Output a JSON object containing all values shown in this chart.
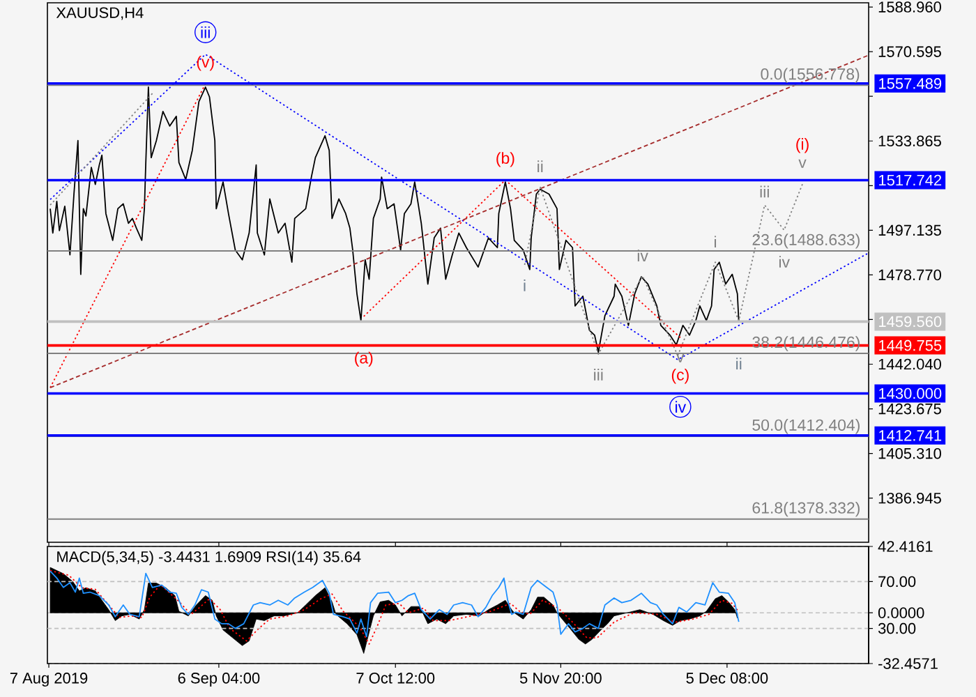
{
  "chart_data": [
    {
      "type": "line",
      "title": "XAUUSD,H4",
      "xlim": [
        "2019-08-06T18:00",
        "2019-12-30T11:00"
      ],
      "ylim": [
        1368.8,
        1590.7
      ],
      "tick_labels": "y",
      "xticks": [
        {
          "value": "2019-08-07T00:00",
          "label": null
        },
        {
          "value": "2019-09-06T04:00",
          "label": null
        },
        {
          "value": "2019-10-07T12:00",
          "label": null
        },
        {
          "value": "2019-11-05T20:00",
          "label": null
        },
        {
          "value": "2019-12-05T08:00",
          "label": null
        }
      ],
      "yticks": [
        {
          "value": 1588.96,
          "label": "1588.960"
        },
        {
          "value": 1570.595,
          "label": "1570.595"
        },
        {
          "value": 1552.23,
          "label": null
        },
        {
          "value": 1533.865,
          "label": "1533.865"
        },
        {
          "value": 1515.5,
          "label": null
        },
        {
          "value": 1497.135,
          "label": "1497.135"
        },
        {
          "value": 1478.77,
          "label": "1478.770"
        },
        {
          "value": 1460.405,
          "label": null
        },
        {
          "value": 1442.04,
          "label": "1442.040"
        },
        {
          "value": 1423.675,
          "label": "1423.675"
        },
        {
          "value": 1405.31,
          "label": "1405.310"
        },
        {
          "value": 1386.945,
          "label": "1386.945"
        }
      ],
      "series": [
        {
          "color": "#000000",
          "x": [
            "2019-08-07T06:00",
            "2019-08-07T17:00",
            "2019-08-08T10:00",
            "2019-08-08T21:00",
            "2019-08-09T20:00",
            "2019-08-10T18:00",
            "2019-08-11T11:00",
            "2019-08-12T04:00",
            "2019-08-12T16:00",
            "2019-08-13T03:00",
            "2019-08-13T14:00",
            "2019-08-14T13:00",
            "2019-08-15T06:00",
            "2019-08-15T23:00",
            "2019-08-16T10:00",
            "2019-08-17T03:00",
            "2019-08-18T08:00",
            "2019-08-19T06:00",
            "2019-08-20T05:00",
            "2019-08-21T03:00",
            "2019-08-21T20:00",
            "2019-08-22T13:00",
            "2019-08-23T12:00",
            "2019-08-23T23:00",
            "2019-08-24T05:00",
            "2019-08-24T16:00",
            "2019-08-25T04:00",
            "2019-08-26T02:00",
            "2019-08-27T06:00",
            "2019-08-28T11:00",
            "2019-08-29T15:00",
            "2019-08-30T02:00",
            "2019-08-31T07:00",
            "2019-09-01T11:00",
            "2019-09-02T15:00",
            "2019-09-03T19:00",
            "2019-09-04T12:00",
            "2019-09-05T11:00",
            "2019-09-05T17:00",
            "2019-09-06T22:00",
            "2019-09-07T21:00",
            "2019-09-09T02:00",
            "2019-09-10T08:00",
            "2019-09-11T13:00",
            "2019-09-12T19:00",
            "2019-09-13T00:00",
            "2019-09-14T06:00",
            "2019-09-15T05:00",
            "2019-09-16T17:00",
            "2019-09-17T22:00",
            "2019-09-19T03:00",
            "2019-09-19T15:00",
            "2019-09-21T14:00",
            "2019-09-22T14:00",
            "2019-09-23T07:00",
            "2019-09-25T00:00",
            "2019-09-25T18:00",
            "2019-09-26T06:00",
            "2019-09-27T11:00",
            "2019-09-28T16:00",
            "2019-09-29T10:00",
            "2019-09-29T22:00",
            "2019-09-30T16:00",
            "2019-10-01T09:00",
            "2019-10-02T03:00",
            "2019-10-02T20:00",
            "2019-10-03T14:00",
            "2019-10-04T19:00",
            "2019-10-05T01:00",
            "2019-10-06T01:00",
            "2019-10-07T06:00",
            "2019-10-08T10:00",
            "2019-10-09T02:00",
            "2019-10-10T06:00",
            "2019-10-10T22:00",
            "2019-10-12T02:00",
            "2019-10-13T06:00",
            "2019-10-14T09:00",
            "2019-10-15T12:00",
            "2019-10-16T10:00",
            "2019-10-17T14:00",
            "2019-10-18T18:00",
            "2019-10-20T02:00",
            "2019-10-22T04:00",
            "2019-10-24T00:00",
            "2019-10-25T14:00",
            "2019-10-25T20:00",
            "2019-10-27T00:00",
            "2019-10-27T22:00",
            "2019-10-28T14:00",
            "2019-10-30T04:00",
            "2019-10-31T08:00",
            "2019-10-31T14:00",
            "2019-11-01T12:00",
            "2019-11-02T04:00",
            "2019-11-03T18:00",
            "2019-11-05T04:00",
            "2019-11-05T14:00",
            "2019-11-06T18:00",
            "2019-11-07T22:00",
            "2019-11-08T09:00",
            "2019-11-09T18:00",
            "2019-11-10T22:00",
            "2019-11-11T20:00",
            "2019-11-12T12:00",
            "2019-11-13T16:00",
            "2019-11-15T07:00",
            "2019-11-15T12:00",
            "2019-11-16T16:00",
            "2019-11-17T20:00",
            "2019-11-18T23:00",
            "2019-11-20T03:00",
            "2019-11-21T07:00",
            "2019-11-22T21:00",
            "2019-11-23T14:00",
            "2019-11-25T05:00",
            "2019-11-26T08:00",
            "2019-11-27T12:00",
            "2019-11-28T16:00",
            "2019-11-29T19:00",
            "2019-11-30T12:00",
            "2019-12-01T16:00",
            "2019-12-02T14:00",
            "2019-12-03T01:00",
            "2019-12-03T23:00",
            "2019-12-05T02:00",
            "2019-12-06T06:00",
            "2019-12-07T04:00",
            "2019-12-07T10:00"
          ],
          "values": [
            1506,
            1496,
            1509,
            1497,
            1507,
            1487,
            1512,
            1534,
            1479,
            1506,
            1503,
            1523,
            1516,
            1524,
            1528,
            1504,
            1493,
            1506,
            1508,
            1500,
            1502,
            1498,
            1493,
            1506,
            1525,
            1556,
            1527,
            1534,
            1546,
            1540,
            1544,
            1525,
            1518,
            1530,
            1550,
            1556,
            1552,
            1534,
            1506,
            1517,
            1504,
            1489,
            1485,
            1496,
            1524,
            1496,
            1487,
            1510,
            1496,
            1500,
            1484,
            1502,
            1506,
            1519,
            1527,
            1536,
            1530,
            1502,
            1510,
            1504,
            1498,
            1489,
            1471,
            1460,
            1485,
            1477,
            1502,
            1510,
            1519,
            1506,
            1508,
            1489,
            1504,
            1508,
            1517,
            1500,
            1475,
            1494,
            1498,
            1477,
            1487,
            1496,
            1490,
            1482,
            1494,
            1490,
            1504,
            1517,
            1506,
            1493,
            1489,
            1481,
            1494,
            1512,
            1514,
            1512,
            1506,
            1481,
            1493,
            1490,
            1466,
            1470,
            1456,
            1454,
            1447,
            1462,
            1470,
            1475,
            1470,
            1458,
            1471,
            1478,
            1475,
            1466,
            1458,
            1454,
            1450,
            1458,
            1454,
            1460,
            1466,
            1460,
            1466,
            1481,
            1484,
            1475,
            1479,
            1471,
            1459.56
          ]
        },
        {
          "color": "#0000ff",
          "line_style": "dotted",
          "x": [
            "2019-08-07T06:00",
            "2019-09-03T19:00",
            "2019-11-26T14:00",
            "2019-12-30T05:00"
          ],
          "values": [
            1509.8,
            1569.5,
            1443.9,
            1487.5
          ]
        },
        {
          "color": "#ff0000",
          "line_style": "dotted",
          "x": [
            "2019-08-07T06:00",
            "2019-09-03T19:00"
          ],
          "values": [
            1432.4,
            1557.4
          ]
        },
        {
          "color": "#ff0000",
          "line_style": "dotted",
          "x": [
            "2019-10-01T21:00",
            "2019-10-27T00:00",
            "2019-11-27T01:00"
          ],
          "values": [
            1461.7,
            1517.8,
            1453
          ]
        },
        {
          "color": "#a52a2a",
          "line_style": "dashed",
          "x": [
            "2019-08-07T06:00",
            "2019-12-30T05:00"
          ],
          "values": [
            1432.4,
            1568.9
          ]
        },
        {
          "color": "#808080",
          "line_style": "dotted",
          "x": [
            "2019-08-07T06:00",
            "2019-08-25T09:00"
          ],
          "values": [
            1507.5,
            1553.4
          ]
        },
        {
          "color": "#808080",
          "line_style": "dotted",
          "x": [
            "2019-10-30T10:00",
            "2019-11-02T04:00",
            "2019-11-12T12:00",
            "2019-11-20T08:00",
            "2019-11-26T14:00"
          ],
          "values": [
            1482.9,
            1515,
            1446.2,
            1478.3,
            1445.6
          ]
        },
        {
          "color": "#808080",
          "line_style": "dotted",
          "x": [
            "2019-11-26T14:00",
            "2019-12-03T06:00",
            "2019-12-07T10:00",
            "2019-12-12T00:00",
            "2019-12-15T11:00",
            "2019-12-18T17:00"
          ],
          "values": [
            1445.6,
            1484,
            1459.9,
            1507.5,
            1497.2,
            1516.1
          ]
        }
      ],
      "ref_lines": [
        {
          "axis": "y",
          "value": 1556.778,
          "color": "#808080"
        },
        {
          "axis": "y",
          "value": 1488.633,
          "color": "#808080"
        },
        {
          "axis": "y",
          "value": 1446.476,
          "color": "#808080"
        },
        {
          "axis": "y",
          "value": 1412.404,
          "color": "#808080"
        },
        {
          "axis": "y",
          "value": 1378.332,
          "color": "#808080"
        },
        {
          "axis": "y",
          "value": 1557.489,
          "label": "1557.489",
          "color": "#0000ff"
        },
        {
          "axis": "y",
          "value": 1517.742,
          "label": "1517.742",
          "color": "#0000ff"
        },
        {
          "axis": "y",
          "value": 1459.56,
          "label": "1459.560",
          "color": "#c0c0c0"
        },
        {
          "axis": "y",
          "value": 1449.755,
          "label": "1449.755",
          "color": "#ff0000"
        },
        {
          "axis": "y",
          "value": 1430,
          "label": "1430.000",
          "color": "#0000ff"
        },
        {
          "axis": "y",
          "value": 1412.741,
          "label": "1412.741",
          "color": "#0000ff"
        }
      ],
      "annotations": [
        {
          "text": "iii",
          "x": "2019-09-03T19:00",
          "y": 1569.5
        },
        {
          "text": "(v)",
          "x": "2019-09-03T19:00",
          "y": 1557.4
        },
        {
          "text": "(a)",
          "x": "2019-10-01T21:00",
          "y": 1461.7
        },
        {
          "text": "(b)",
          "x": "2019-10-27T00:00",
          "y": 1517.8
        },
        {
          "text": "ii",
          "x": "2019-11-02T04:00",
          "y": 1515
        },
        {
          "text": "i",
          "x": "2019-10-30T10:00",
          "y": 1482.9
        },
        {
          "text": "iv",
          "x": "2019-11-20T08:00",
          "y": 1478.3
        },
        {
          "text": "iii",
          "x": "2019-11-12T12:00",
          "y": 1446.2
        },
        {
          "text": "v",
          "x": "2019-11-26T14:00",
          "y": 1445.6
        },
        {
          "text": "(c)",
          "x": "2019-11-27T01:00",
          "y": 1453
        },
        {
          "text": "iv",
          "x": "2019-11-26T14:00",
          "y": 1443.9
        },
        {
          "text": "i",
          "x": "2019-12-03T06:00",
          "y": 1484
        },
        {
          "text": "ii",
          "x": "2019-12-07T10:00",
          "y": 1459.9
        },
        {
          "text": "iii",
          "x": "2019-12-12T00:00",
          "y": 1507.5
        },
        {
          "text": "iv",
          "x": "2019-12-15T11:00",
          "y": 1497.2
        },
        {
          "text": "v",
          "x": "2019-12-18T17:00",
          "y": 1516.1
        },
        {
          "text": "(i)",
          "x": "2019-12-18T17:00",
          "y": 1516.1
        },
        {
          "text": "0.0(1556.778)",
          "x": "2019-12-20T02:00",
          "y": 1556.778
        },
        {
          "text": "23.6(1488.633)",
          "x": "2019-12-19T09:00",
          "y": 1488.633
        },
        {
          "text": "38.2(1446.476)",
          "x": "2019-12-19T09:00",
          "y": 1446.476
        },
        {
          "text": "50.0(1412.404)",
          "x": "2019-12-19T09:00",
          "y": 1412.404
        },
        {
          "text": "61.8(1378.332)",
          "x": "2019-12-19T09:00",
          "y": 1378.332
        }
      ]
    },
    {
      "type": "line",
      "title": "MACD(5,34,5) -3.4431 1.6909 RSI(14) 35.64",
      "xlim": [
        "2019-08-06T18:00",
        "2019-12-30T11:00"
      ],
      "grid": "y",
      "xticks": [
        {
          "value": "2019-08-07T00:00",
          "label": "7 Aug 2019"
        },
        {
          "value": "2019-09-06T04:00",
          "label": "6 Sep 04:00"
        },
        {
          "value": "2019-10-07T12:00",
          "label": "7 Oct 12:00"
        },
        {
          "value": "2019-11-05T20:00",
          "label": "5 Nov 20:00"
        },
        {
          "value": "2019-12-05T08:00",
          "label": "5 Dec 08:00"
        }
      ],
      "ylim": [
        -32.4571,
        42.4161
      ],
      "yticks": [
        {
          "value": 42.4161,
          "label": "42.4161"
        },
        {
          "value": 0,
          "label": "0.0000"
        },
        {
          "value": -32.4571,
          "label": "-32.4571"
        }
      ],
      "y2lim": [
        0,
        100
      ],
      "y2ticks": [
        {
          "value": 70,
          "label": "70.00"
        },
        {
          "value": 30,
          "label": "30.00"
        }
      ],
      "series": [
        {
          "type": "area",
          "color": "#000000",
          "x": [
            "2019-08-07T06:00",
            "2019-08-09T14:00",
            "2019-08-11T06:00",
            "2019-08-12T10:00",
            "2019-08-13T14:00",
            "2019-08-15T06:00",
            "2019-08-16T10:00",
            "2019-08-17T15:00",
            "2019-08-18T19:00",
            "2019-08-19T23:00",
            "2019-08-21T09:00",
            "2019-08-23T01:00",
            "2019-08-23T23:00",
            "2019-08-24T16:00",
            "2019-08-26T02:00",
            "2019-08-27T18:00",
            "2019-08-29T09:00",
            "2019-08-30T02:00",
            "2019-08-31T18:00",
            "2019-09-02T04:00",
            "2019-09-03T19:00",
            "2019-09-05T00:00",
            "2019-09-05T17:00",
            "2019-09-06T22:00",
            "2019-09-08T15:00",
            "2019-09-10T08:00",
            "2019-09-11T13:00",
            "2019-09-12T19:00",
            "2019-09-14T06:00",
            "2019-09-15T23:00",
            "2019-09-17T16:00",
            "2019-09-20T03:00",
            "2019-09-21T14:00",
            "2019-09-23T07:00",
            "2019-09-25T00:00",
            "2019-09-26T06:00",
            "2019-09-26T23:00",
            "2019-09-28T22:00",
            "2019-09-30T16:00",
            "2019-10-01T21:00",
            "2019-10-02T14:00",
            "2019-10-03T14:00",
            "2019-10-04T19:00",
            "2019-10-06T07:00",
            "2019-10-07T12:00",
            "2019-10-08T16:00",
            "2019-10-10T06:00",
            "2019-10-11T20:00",
            "2019-10-13T06:00",
            "2019-10-14T20:00",
            "2019-10-16T10:00",
            "2019-10-17T20:00",
            "2019-10-20T02:00",
            "2019-10-22T10:00",
            "2019-10-24T00:00",
            "2019-10-25T14:00",
            "2019-10-27T00:00",
            "2019-10-28T03:00",
            "2019-10-28T14:00",
            "2019-10-30T04:00",
            "2019-10-31T14:00",
            "2019-11-01T17:00",
            "2019-11-02T20:00",
            "2019-11-04T11:00",
            "2019-11-05T04:00",
            "2019-11-06T02:00",
            "2019-11-07T11:00",
            "2019-11-09T01:00",
            "2019-11-10T05:00",
            "2019-11-11T09:00",
            "2019-11-12T23:00",
            "2019-11-14T03:00",
            "2019-11-15T07:00",
            "2019-11-17T14:00",
            "2019-11-19T21:00",
            "2019-11-22T05:00",
            "2019-11-24T01:00",
            "2019-11-25T16:00",
            "2019-11-27T01:00",
            "2019-11-28T16:00",
            "2019-11-30T12:00",
            "2019-12-01T16:00",
            "2019-12-03T06:00",
            "2019-12-04T10:00",
            "2019-12-05T14:00",
            "2019-12-06T17:00",
            "2019-12-07T04:00"
          ],
          "values": [
            29,
            25,
            20,
            14,
            16,
            14,
            8,
            2,
            -5,
            -2,
            -1,
            -4,
            2,
            19,
            19,
            16,
            11,
            1,
            -2,
            5,
            11,
            8,
            -2,
            -11,
            -16,
            -21,
            -18,
            -4,
            -5,
            -2,
            -2,
            0,
            5,
            11,
            16,
            7,
            -1,
            -7,
            -14,
            -26,
            -16,
            -2,
            7,
            8,
            5,
            -2,
            4,
            4,
            -7,
            -4,
            -7,
            -2,
            -1,
            -2,
            2,
            5,
            8,
            2,
            0,
            -4,
            2,
            10,
            10,
            5,
            0,
            -4,
            -10,
            -17,
            -20,
            -17,
            -11,
            -7,
            -2,
            0,
            2,
            -1,
            -5,
            -8,
            -5,
            -4,
            -2,
            1,
            9,
            11,
            7,
            2,
            -3.4431
          ]
        },
        {
          "type": "line",
          "color": "#ff0000",
          "line_style": "dotted",
          "x": [
            "2019-08-07T06:00",
            "2019-08-10T13:00",
            "2019-08-12T21:00",
            "2019-08-15T06:00",
            "2019-08-17T15:00",
            "2019-08-19T12:00",
            "2019-08-21T15:00",
            "2019-08-23T12:00",
            "2019-08-24T22:00",
            "2019-08-26T19:00",
            "2019-08-29T21:00",
            "2019-09-01T05:00",
            "2019-09-02T15:00",
            "2019-09-04T12:00",
            "2019-09-06T10:00",
            "2019-09-08T03:00",
            "2019-09-11T02:00",
            "2019-09-13T06:00",
            "2019-09-15T05:00",
            "2019-09-18T10:00",
            "2019-09-21T08:00",
            "2019-09-24T07:00",
            "2019-09-26T06:00",
            "2019-09-28T05:00",
            "2019-10-01T03:00",
            "2019-10-02T20:00",
            "2019-10-04T08:00",
            "2019-10-05T19:00",
            "2019-10-08T04:00",
            "2019-10-09T19:00",
            "2019-10-12T13:00",
            "2019-10-14T04:00",
            "2019-10-17T03:00",
            "2019-10-21T00:00",
            "2019-10-24T11:00",
            "2019-10-27T22:00",
            "2019-10-29T12:00",
            "2019-10-31T08:00",
            "2019-11-02T15:00",
            "2019-11-05T09:00",
            "2019-11-07T16:00",
            "2019-11-10T11:00",
            "2019-11-12T07:00",
            "2019-11-15T07:00",
            "2019-11-18T18:00",
            "2019-11-22T21:00",
            "2019-11-26T03:00",
            "2019-11-29T08:00",
            "2019-12-02T03:00",
            "2019-12-04T10:00",
            "2019-12-06T06:00",
            "2019-12-07T04:00"
          ],
          "values": [
            27,
            24,
            16,
            15,
            5,
            -3,
            -2,
            -3,
            10,
            18,
            8,
            -1,
            3,
            9,
            2,
            -10,
            -18,
            -10,
            -4,
            -2,
            2,
            9,
            12,
            1,
            -9,
            -20,
            -8,
            5,
            6,
            0,
            3,
            -5,
            -5,
            -2,
            1,
            6,
            1,
            -1,
            8,
            3,
            -5,
            -16,
            -16,
            -6,
            0,
            -1,
            -6,
            -4,
            -1,
            8,
            6,
            1.6909
          ]
        },
        {
          "type": "line",
          "axis": "y2",
          "color": "#1e90ff",
          "x": [
            "2019-08-07T06:00",
            "2019-08-08T10:00",
            "2019-08-09T14:00",
            "2019-08-10T18:00",
            "2019-08-11T17:00",
            "2019-08-12T10:00",
            "2019-08-13T03:00",
            "2019-08-14T07:00",
            "2019-08-15T23:00",
            "2019-08-17T15:00",
            "2019-08-18T19:00",
            "2019-08-20T05:00",
            "2019-08-21T09:00",
            "2019-08-23T01:00",
            "2019-08-24T05:00",
            "2019-08-25T09:00",
            "2019-08-27T01:00",
            "2019-08-28T11:00",
            "2019-08-29T15:00",
            "2019-08-30T14:00",
            "2019-08-31T18:00",
            "2019-09-01T22:00",
            "2019-09-03T02:00",
            "2019-09-04T07:00",
            "2019-09-05T11:00",
            "2019-09-06T16:00",
            "2019-09-07T21:00",
            "2019-09-09T02:00",
            "2019-09-10T14:00",
            "2019-09-12T07:00",
            "2019-09-13T12:00",
            "2019-09-15T05:00",
            "2019-09-16T17:00",
            "2019-09-18T10:00",
            "2019-09-19T15:00",
            "2019-09-21T08:00",
            "2019-09-22T20:00",
            "2019-09-24T13:00",
            "2019-09-25T18:00",
            "2019-09-26T12:00",
            "2019-09-28T05:00",
            "2019-09-29T10:00",
            "2019-09-30T16:00",
            "2019-10-01T09:00",
            "2019-10-02T09:00",
            "2019-10-03T02:00",
            "2019-10-04T08:00",
            "2019-10-06T07:00",
            "2019-10-07T12:00",
            "2019-10-08T16:00",
            "2019-10-09T19:00",
            "2019-10-10T22:00",
            "2019-10-12T02:00",
            "2019-10-13T16:00",
            "2019-10-15T07:00",
            "2019-10-16T16:00",
            "2019-10-17T20:00",
            "2019-10-19T10:00",
            "2019-10-21T00:00",
            "2019-10-22T04:00",
            "2019-10-23T13:00",
            "2019-10-24T16:00",
            "2019-10-25T20:00",
            "2019-10-26T18:00",
            "2019-10-27T10:00",
            "2019-10-28T03:00",
            "2019-10-28T20:00",
            "2019-10-30T04:00",
            "2019-10-31T14:00",
            "2019-11-01T17:00",
            "2019-11-03T08:00",
            "2019-11-04T11:00",
            "2019-11-05T04:00",
            "2019-11-05T20:00",
            "2019-11-07T05:00",
            "2019-11-08T09:00",
            "2019-11-09T18:00",
            "2019-11-10T22:00",
            "2019-11-12T12:00",
            "2019-11-13T16:00",
            "2019-11-15T07:00",
            "2019-11-16T16:00",
            "2019-11-18T07:00",
            "2019-11-20T03:00",
            "2019-11-21T18:00",
            "2019-11-22T21:00",
            "2019-11-24T01:00",
            "2019-11-25T16:00",
            "2019-11-26T19:00",
            "2019-11-28T04:00",
            "2019-11-29T19:00",
            "2019-12-01T10:00",
            "2019-12-02T19:00",
            "2019-12-03T23:00",
            "2019-12-05T14:00",
            "2019-12-06T17:00",
            "2019-12-07T10:00"
          ],
          "values": [
            79,
            73,
            65,
            69,
            61,
            73,
            60,
            61,
            58,
            50,
            40,
            50,
            42,
            40,
            77,
            65,
            67,
            61,
            60,
            48,
            42,
            50,
            63,
            61,
            38,
            34,
            34,
            30,
            34,
            50,
            52,
            50,
            54,
            50,
            56,
            61,
            65,
            71,
            60,
            42,
            40,
            38,
            26,
            38,
            23,
            52,
            60,
            61,
            52,
            54,
            58,
            60,
            46,
            38,
            46,
            42,
            50,
            52,
            50,
            40,
            48,
            58,
            65,
            73,
            54,
            42,
            44,
            42,
            65,
            71,
            65,
            61,
            50,
            25,
            34,
            27,
            30,
            34,
            30,
            50,
            56,
            52,
            54,
            60,
            52,
            50,
            42,
            34,
            48,
            44,
            52,
            50,
            69,
            61,
            60,
            52,
            35.64
          ]
        }
      ]
    }
  ]
}
